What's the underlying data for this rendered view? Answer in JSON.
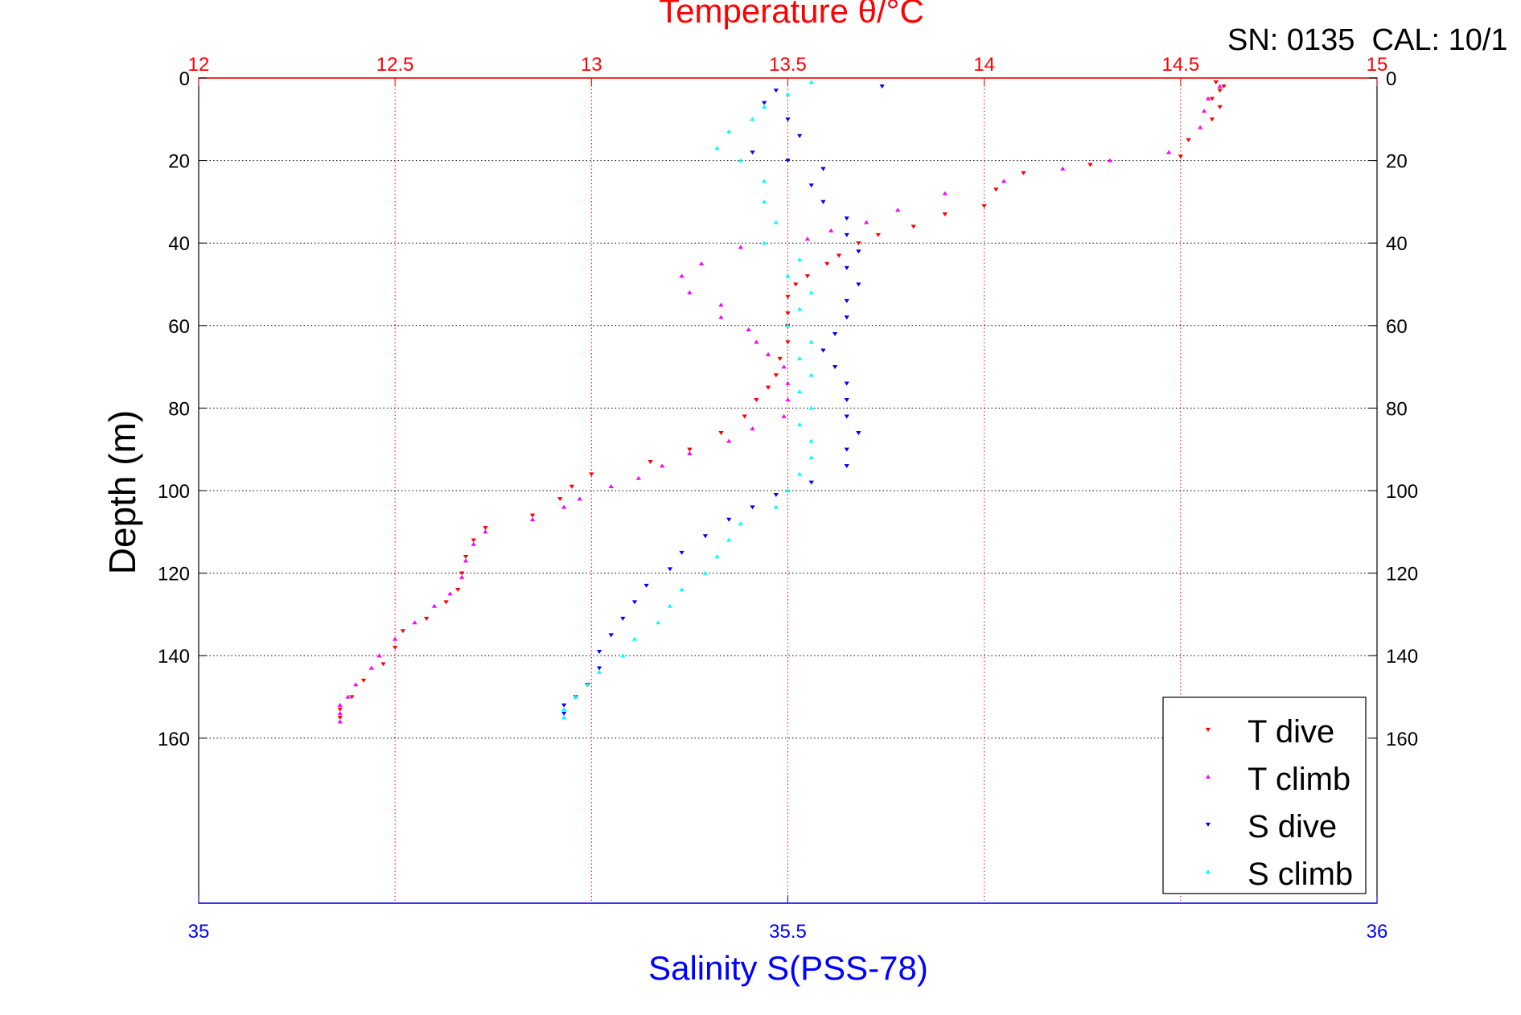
{
  "chart_data": {
    "type": "scatter",
    "title": "Temperature θ/°C",
    "annotation": "SN: 0135  CAL: 10/1",
    "ylabel": "Depth (m)",
    "xlabel_bottom": "Salinity S(PSS-78)",
    "ylim": [
      0,
      200
    ],
    "y_reversed": true,
    "grid": true,
    "legend_placement": "bottom-right",
    "temperature_axis": {
      "range": [
        12,
        15
      ],
      "ticks": [
        12,
        12.5,
        13,
        13.5,
        14,
        14.5,
        15
      ],
      "tick_labels": [
        "12",
        "12.5",
        "13",
        "13.5",
        "14",
        "14.5",
        "15"
      ],
      "color": "#ff0000"
    },
    "salinity_axis": {
      "range": [
        35,
        36
      ],
      "ticks": [
        35,
        35.5,
        36
      ],
      "tick_labels": [
        "35",
        "35.5",
        "36"
      ],
      "color": "#0000ff"
    },
    "depth_ticks": [
      0,
      20,
      40,
      60,
      80,
      100,
      120,
      140,
      160
    ],
    "depth_tick_labels": [
      "0",
      "20",
      "40",
      "60",
      "80",
      "100",
      "120",
      "140",
      "160"
    ],
    "series": [
      {
        "name": "T dive",
        "axis": "temperature",
        "marker": "down-triangle",
        "color": "#ff0000",
        "points": [
          [
            14.59,
            1
          ],
          [
            14.61,
            2
          ],
          [
            14.6,
            3
          ],
          [
            14.58,
            5
          ],
          [
            14.6,
            7
          ],
          [
            14.58,
            10
          ],
          [
            14.52,
            15
          ],
          [
            14.5,
            19
          ],
          [
            14.27,
            21
          ],
          [
            14.1,
            23
          ],
          [
            14.03,
            27
          ],
          [
            14.0,
            31
          ],
          [
            13.9,
            33
          ],
          [
            13.82,
            36
          ],
          [
            13.73,
            38
          ],
          [
            13.68,
            40
          ],
          [
            13.63,
            43
          ],
          [
            13.6,
            45
          ],
          [
            13.55,
            48
          ],
          [
            13.52,
            50
          ],
          [
            13.5,
            53
          ],
          [
            13.5,
            57
          ],
          [
            13.5,
            60
          ],
          [
            13.5,
            64
          ],
          [
            13.48,
            68
          ],
          [
            13.47,
            72
          ],
          [
            13.45,
            75
          ],
          [
            13.42,
            78
          ],
          [
            13.39,
            82
          ],
          [
            13.33,
            86
          ],
          [
            13.25,
            90
          ],
          [
            13.15,
            93
          ],
          [
            13.0,
            96
          ],
          [
            12.95,
            99
          ],
          [
            12.92,
            102
          ],
          [
            12.85,
            106
          ],
          [
            12.73,
            109
          ],
          [
            12.7,
            112
          ],
          [
            12.68,
            116
          ],
          [
            12.67,
            120
          ],
          [
            12.66,
            124
          ],
          [
            12.63,
            127
          ],
          [
            12.58,
            131
          ],
          [
            12.52,
            134
          ],
          [
            12.5,
            138
          ],
          [
            12.47,
            142
          ],
          [
            12.42,
            146
          ],
          [
            12.39,
            150
          ],
          [
            12.36,
            153
          ],
          [
            12.36,
            155
          ]
        ]
      },
      {
        "name": "T climb",
        "axis": "temperature",
        "marker": "up-triangle",
        "color": "#ff00ff",
        "points": [
          [
            14.6,
            2
          ],
          [
            14.57,
            5
          ],
          [
            14.56,
            8
          ],
          [
            14.55,
            12
          ],
          [
            14.47,
            18
          ],
          [
            14.32,
            20
          ],
          [
            14.2,
            22
          ],
          [
            14.05,
            25
          ],
          [
            13.9,
            28
          ],
          [
            13.78,
            32
          ],
          [
            13.7,
            35
          ],
          [
            13.61,
            37
          ],
          [
            13.55,
            39
          ],
          [
            13.38,
            41
          ],
          [
            13.28,
            45
          ],
          [
            13.23,
            48
          ],
          [
            13.25,
            52
          ],
          [
            13.33,
            55
          ],
          [
            13.33,
            58
          ],
          [
            13.4,
            61
          ],
          [
            13.42,
            64
          ],
          [
            13.45,
            67
          ],
          [
            13.49,
            70
          ],
          [
            13.5,
            74
          ],
          [
            13.5,
            78
          ],
          [
            13.49,
            82
          ],
          [
            13.41,
            85
          ],
          [
            13.35,
            88
          ],
          [
            13.25,
            91
          ],
          [
            13.18,
            94
          ],
          [
            13.12,
            97
          ],
          [
            13.05,
            99
          ],
          [
            12.97,
            102
          ],
          [
            12.93,
            104
          ],
          [
            12.85,
            107
          ],
          [
            12.73,
            110
          ],
          [
            12.7,
            113
          ],
          [
            12.68,
            117
          ],
          [
            12.67,
            121
          ],
          [
            12.64,
            125
          ],
          [
            12.6,
            128
          ],
          [
            12.55,
            132
          ],
          [
            12.5,
            136
          ],
          [
            12.46,
            140
          ],
          [
            12.44,
            143
          ],
          [
            12.4,
            147
          ],
          [
            12.38,
            150
          ],
          [
            12.36,
            152
          ],
          [
            12.36,
            154
          ],
          [
            12.36,
            156
          ]
        ]
      },
      {
        "name": "S dive",
        "axis": "salinity",
        "marker": "down-triangle",
        "color": "#0000ff",
        "points": [
          [
            35.58,
            2
          ],
          [
            35.49,
            3
          ],
          [
            35.48,
            6
          ],
          [
            35.5,
            10
          ],
          [
            35.51,
            14
          ],
          [
            35.47,
            18
          ],
          [
            35.5,
            20
          ],
          [
            35.53,
            22
          ],
          [
            35.52,
            26
          ],
          [
            35.53,
            30
          ],
          [
            35.55,
            34
          ],
          [
            35.55,
            38
          ],
          [
            35.56,
            42
          ],
          [
            35.55,
            46
          ],
          [
            35.56,
            50
          ],
          [
            35.55,
            54
          ],
          [
            35.55,
            58
          ],
          [
            35.54,
            62
          ],
          [
            35.53,
            66
          ],
          [
            35.54,
            70
          ],
          [
            35.55,
            74
          ],
          [
            35.55,
            78
          ],
          [
            35.55,
            82
          ],
          [
            35.56,
            86
          ],
          [
            35.55,
            90
          ],
          [
            35.55,
            94
          ],
          [
            35.52,
            98
          ],
          [
            35.49,
            101
          ],
          [
            35.47,
            104
          ],
          [
            35.45,
            107
          ],
          [
            35.43,
            111
          ],
          [
            35.41,
            115
          ],
          [
            35.4,
            119
          ],
          [
            35.38,
            123
          ],
          [
            35.37,
            127
          ],
          [
            35.36,
            131
          ],
          [
            35.35,
            135
          ],
          [
            35.34,
            139
          ],
          [
            35.34,
            143
          ],
          [
            35.33,
            147
          ],
          [
            35.32,
            150
          ],
          [
            35.31,
            152
          ],
          [
            35.31,
            154
          ]
        ]
      },
      {
        "name": "S climb",
        "axis": "salinity",
        "marker": "up-triangle",
        "color": "#00ffff",
        "points": [
          [
            35.52,
            1
          ],
          [
            35.5,
            4
          ],
          [
            35.48,
            7
          ],
          [
            35.47,
            10
          ],
          [
            35.45,
            13
          ],
          [
            35.44,
            17
          ],
          [
            35.46,
            20
          ],
          [
            35.48,
            25
          ],
          [
            35.48,
            30
          ],
          [
            35.49,
            35
          ],
          [
            35.48,
            40
          ],
          [
            35.51,
            44
          ],
          [
            35.5,
            48
          ],
          [
            35.52,
            52
          ],
          [
            35.51,
            56
          ],
          [
            35.5,
            60
          ],
          [
            35.52,
            64
          ],
          [
            35.51,
            68
          ],
          [
            35.52,
            72
          ],
          [
            35.51,
            76
          ],
          [
            35.52,
            80
          ],
          [
            35.51,
            84
          ],
          [
            35.52,
            88
          ],
          [
            35.52,
            92
          ],
          [
            35.51,
            96
          ],
          [
            35.5,
            100
          ],
          [
            35.49,
            104
          ],
          [
            35.46,
            108
          ],
          [
            35.45,
            112
          ],
          [
            35.44,
            116
          ],
          [
            35.43,
            120
          ],
          [
            35.41,
            124
          ],
          [
            35.4,
            128
          ],
          [
            35.39,
            132
          ],
          [
            35.37,
            136
          ],
          [
            35.36,
            140
          ],
          [
            35.34,
            144
          ],
          [
            35.33,
            147
          ],
          [
            35.32,
            150
          ],
          [
            35.31,
            153
          ],
          [
            35.31,
            155
          ]
        ]
      }
    ]
  }
}
